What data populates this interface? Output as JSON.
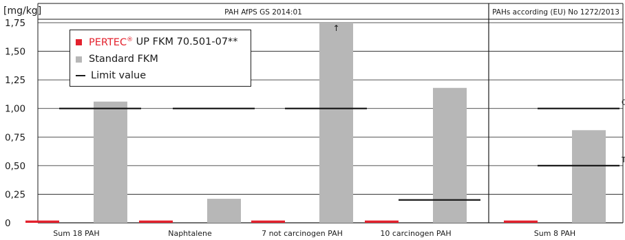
{
  "chart_data": {
    "type": "bar",
    "ylabel": "[mg/kg]",
    "ylim": [
      0,
      1.75
    ],
    "yticks": [
      "0",
      "0,25",
      "0,50",
      "0,75",
      "1,00",
      "1,25",
      "1,50",
      "1,75"
    ],
    "ytick_values": [
      0,
      0.25,
      0.5,
      0.75,
      1.0,
      1.25,
      1.5,
      1.75
    ],
    "grid": true,
    "legend_position": "top-left",
    "panels": [
      {
        "title": "PAH AfPS GS 2014:01",
        "categories": [
          "Sum 18 PAH",
          "Naphtalene",
          "7 not carcinogen PAH",
          "10 carcinogen PAH"
        ]
      },
      {
        "title": "PAHs according (EU) No 1272/2013",
        "categories": [
          "Sum 8 PAH"
        ]
      }
    ],
    "categories": [
      "Sum 18 PAH",
      "Naphtalene",
      "7 not carcinogen PAH",
      "10 carcinogen PAH",
      "Sum 8 PAH"
    ],
    "series": [
      {
        "name": "PERTEC® UP FKM 70.501-07**",
        "color": "#e3212d",
        "values": [
          0.02,
          0.02,
          0.02,
          0.02,
          0.02
        ]
      },
      {
        "name": "Standard FKM",
        "color": "#b7b7b7",
        "values": [
          1.06,
          0.21,
          1.75,
          1.18,
          0.81
        ]
      }
    ],
    "overflow_marker": {
      "category": "7 not carcinogen PAH",
      "symbol": "↑"
    },
    "limit_series": {
      "name": "Limit value",
      "color": "#1a1a1a"
    },
    "limits": [
      {
        "category": "Sum 18 PAH",
        "value": 1.0,
        "label": ""
      },
      {
        "category": "Naphtalene",
        "value": 1.0,
        "label": ""
      },
      {
        "category": "7 not carcinogen PAH",
        "value": 1.0,
        "label": ""
      },
      {
        "category": "10 carcinogen PAH",
        "value": 0.2,
        "label": ""
      },
      {
        "category": "Sum 8 PAH",
        "value": 1.0,
        "label": "Other"
      },
      {
        "category": "Sum 8 PAH",
        "value": 0.5,
        "label": "Toys"
      }
    ],
    "legend": {
      "pertec_main": "PERTEC",
      "pertec_reg": "®",
      "pertec_rest": " UP FKM 70.501-07**",
      "standard": "Standard FKM",
      "limit": "Limit value"
    }
  }
}
